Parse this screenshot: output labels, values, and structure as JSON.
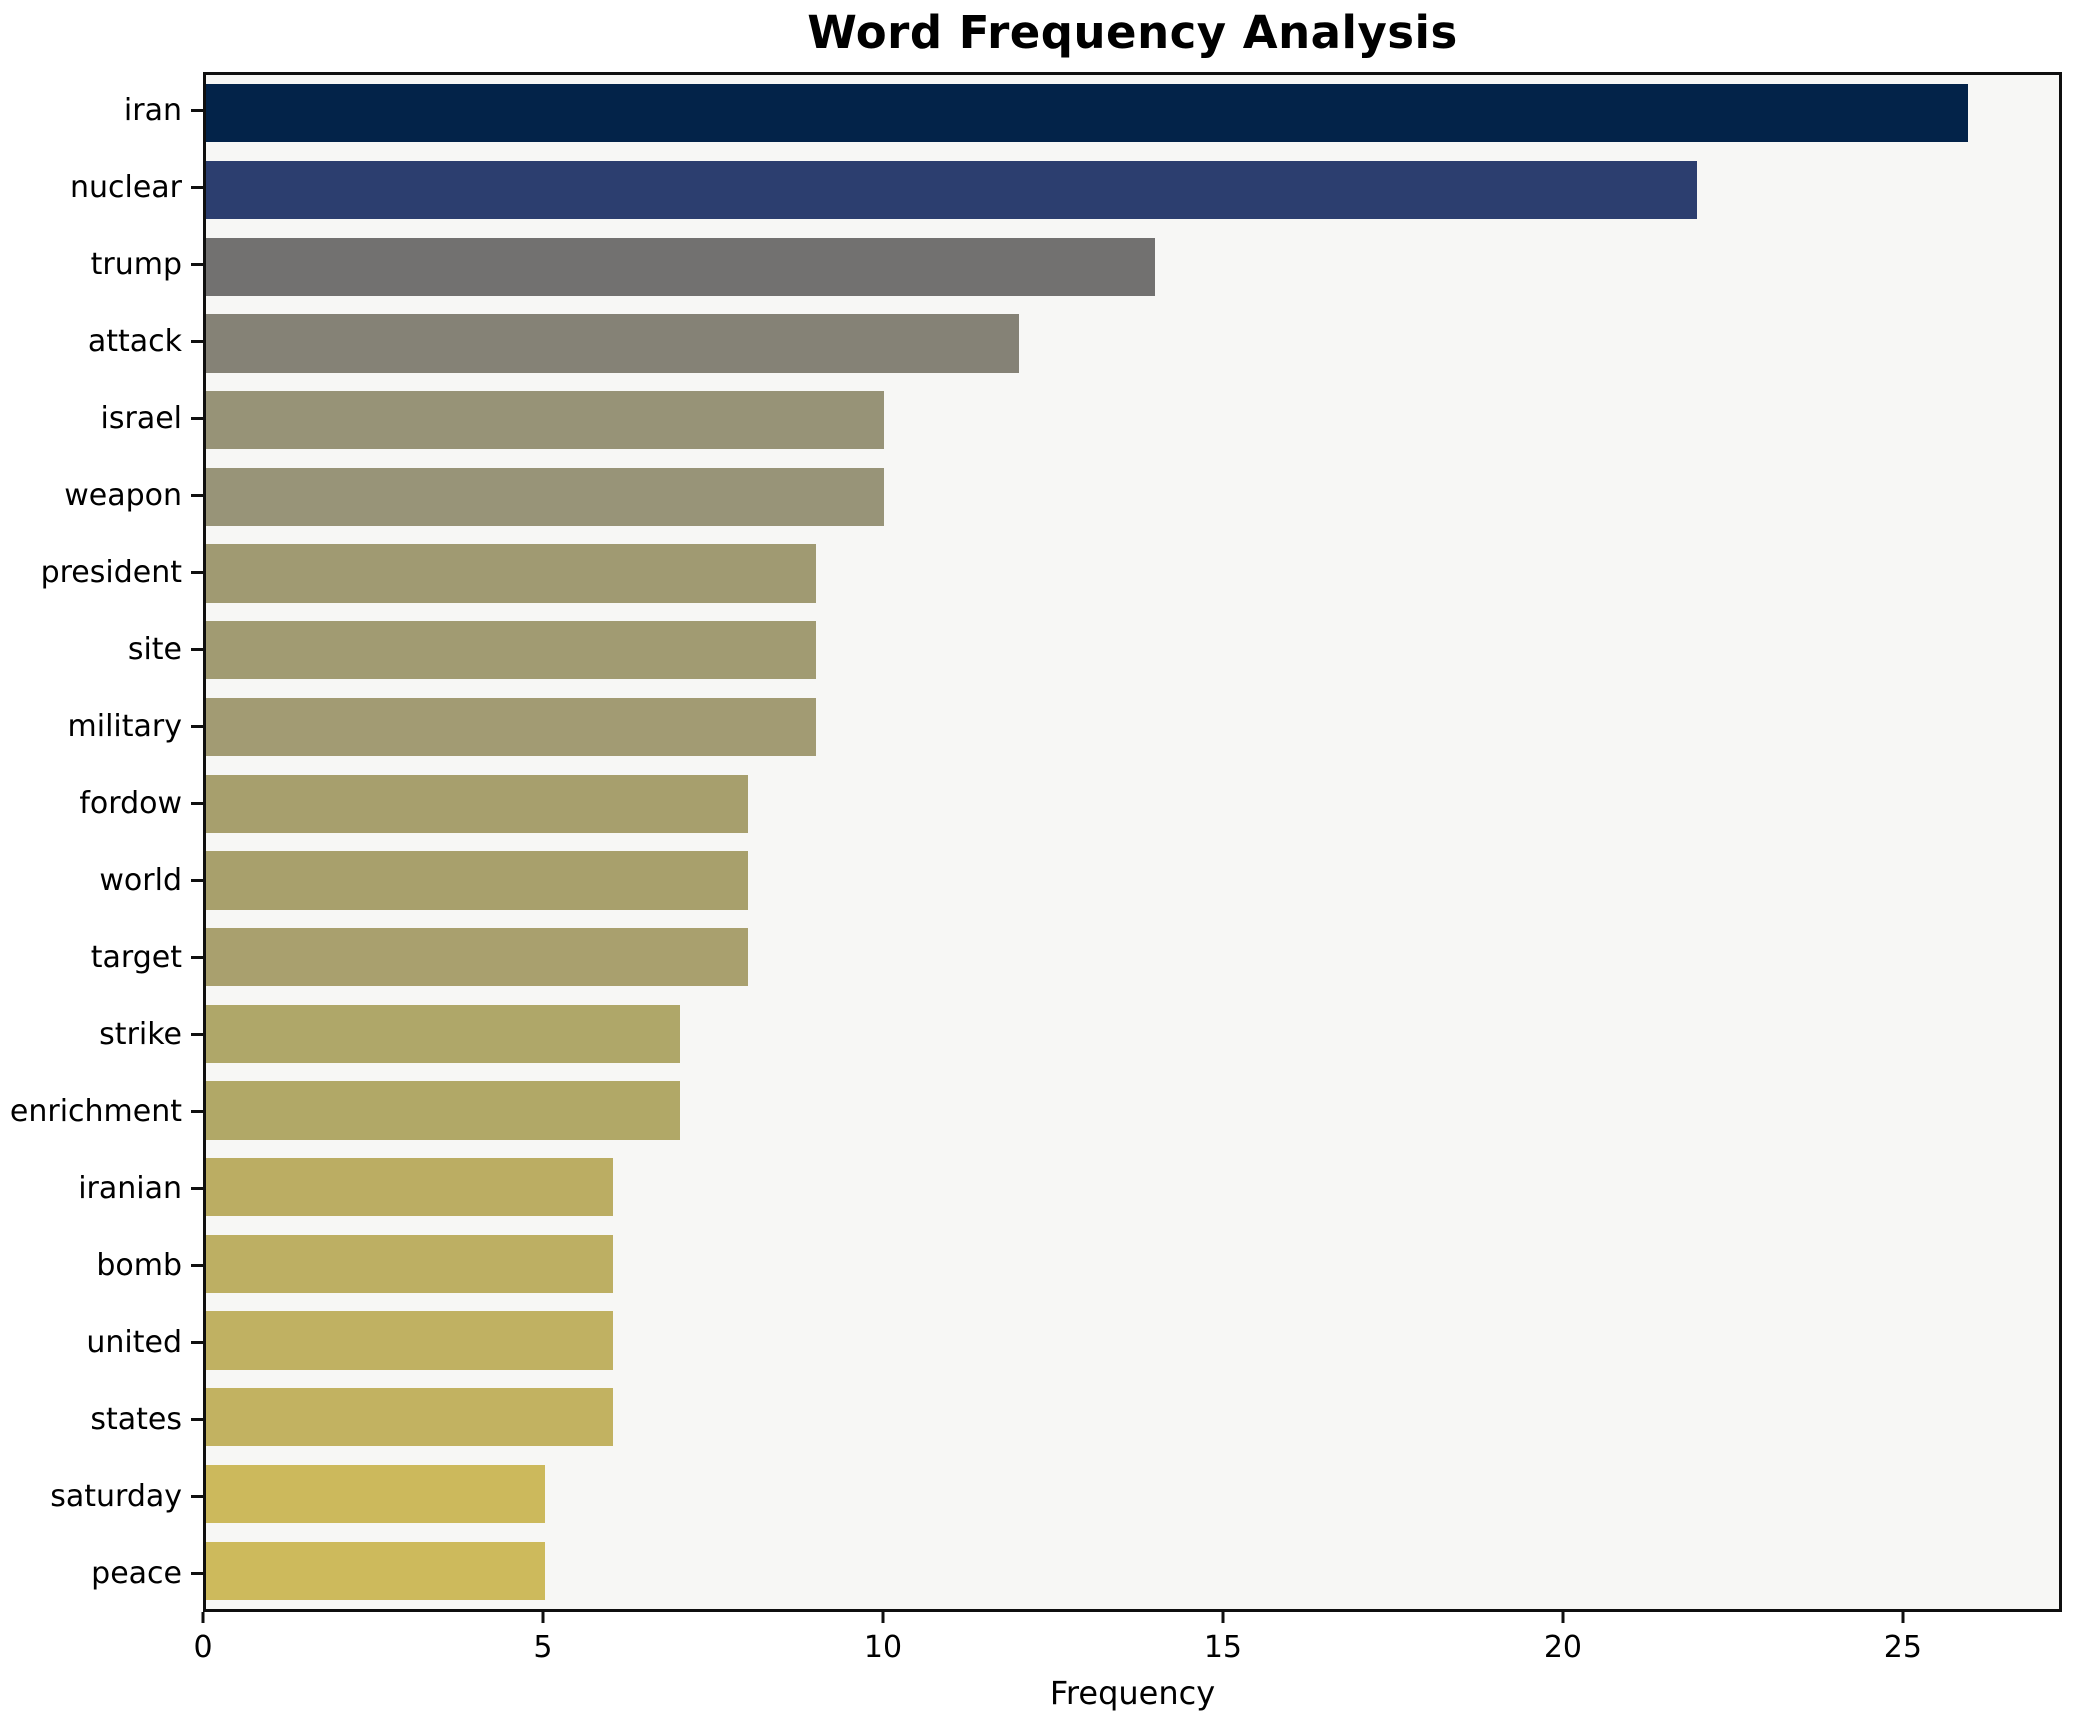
{
  "title": "Word Frequency Analysis",
  "chart_data": {
    "type": "bar",
    "orientation": "horizontal",
    "title": "Word Frequency Analysis",
    "xlabel": "Frequency",
    "ylabel": "",
    "categories": [
      "iran",
      "nuclear",
      "trump",
      "attack",
      "israel",
      "weapon",
      "president",
      "site",
      "military",
      "fordow",
      "world",
      "target",
      "strike",
      "enrichment",
      "iranian",
      "bomb",
      "united",
      "states",
      "saturday",
      "peace"
    ],
    "values": [
      26,
      22,
      14,
      12,
      10,
      10,
      9,
      9,
      9,
      8,
      8,
      8,
      7,
      7,
      6,
      6,
      6,
      6,
      5,
      5
    ],
    "bar_colors": [
      "#032349",
      "#2c3e6f",
      "#727170",
      "#858276",
      "#979377",
      "#989478",
      "#a09a72",
      "#a19b72",
      "#a29b73",
      "#a79f6d",
      "#a8a06c",
      "#a9a06e",
      "#afa769",
      "#b1a867",
      "#bbad63",
      "#bdaf63",
      "#c0b162",
      "#c2b261",
      "#ccb95c",
      "#cdba5c"
    ],
    "x_ticks": [
      0,
      5,
      10,
      15,
      20,
      25
    ],
    "xlim": [
      0,
      27.34
    ],
    "grid": false,
    "legend": "none",
    "plot_background": "#f7f7f5",
    "figure_background": "#ffffff",
    "spine_color": "#0f0f0f"
  }
}
